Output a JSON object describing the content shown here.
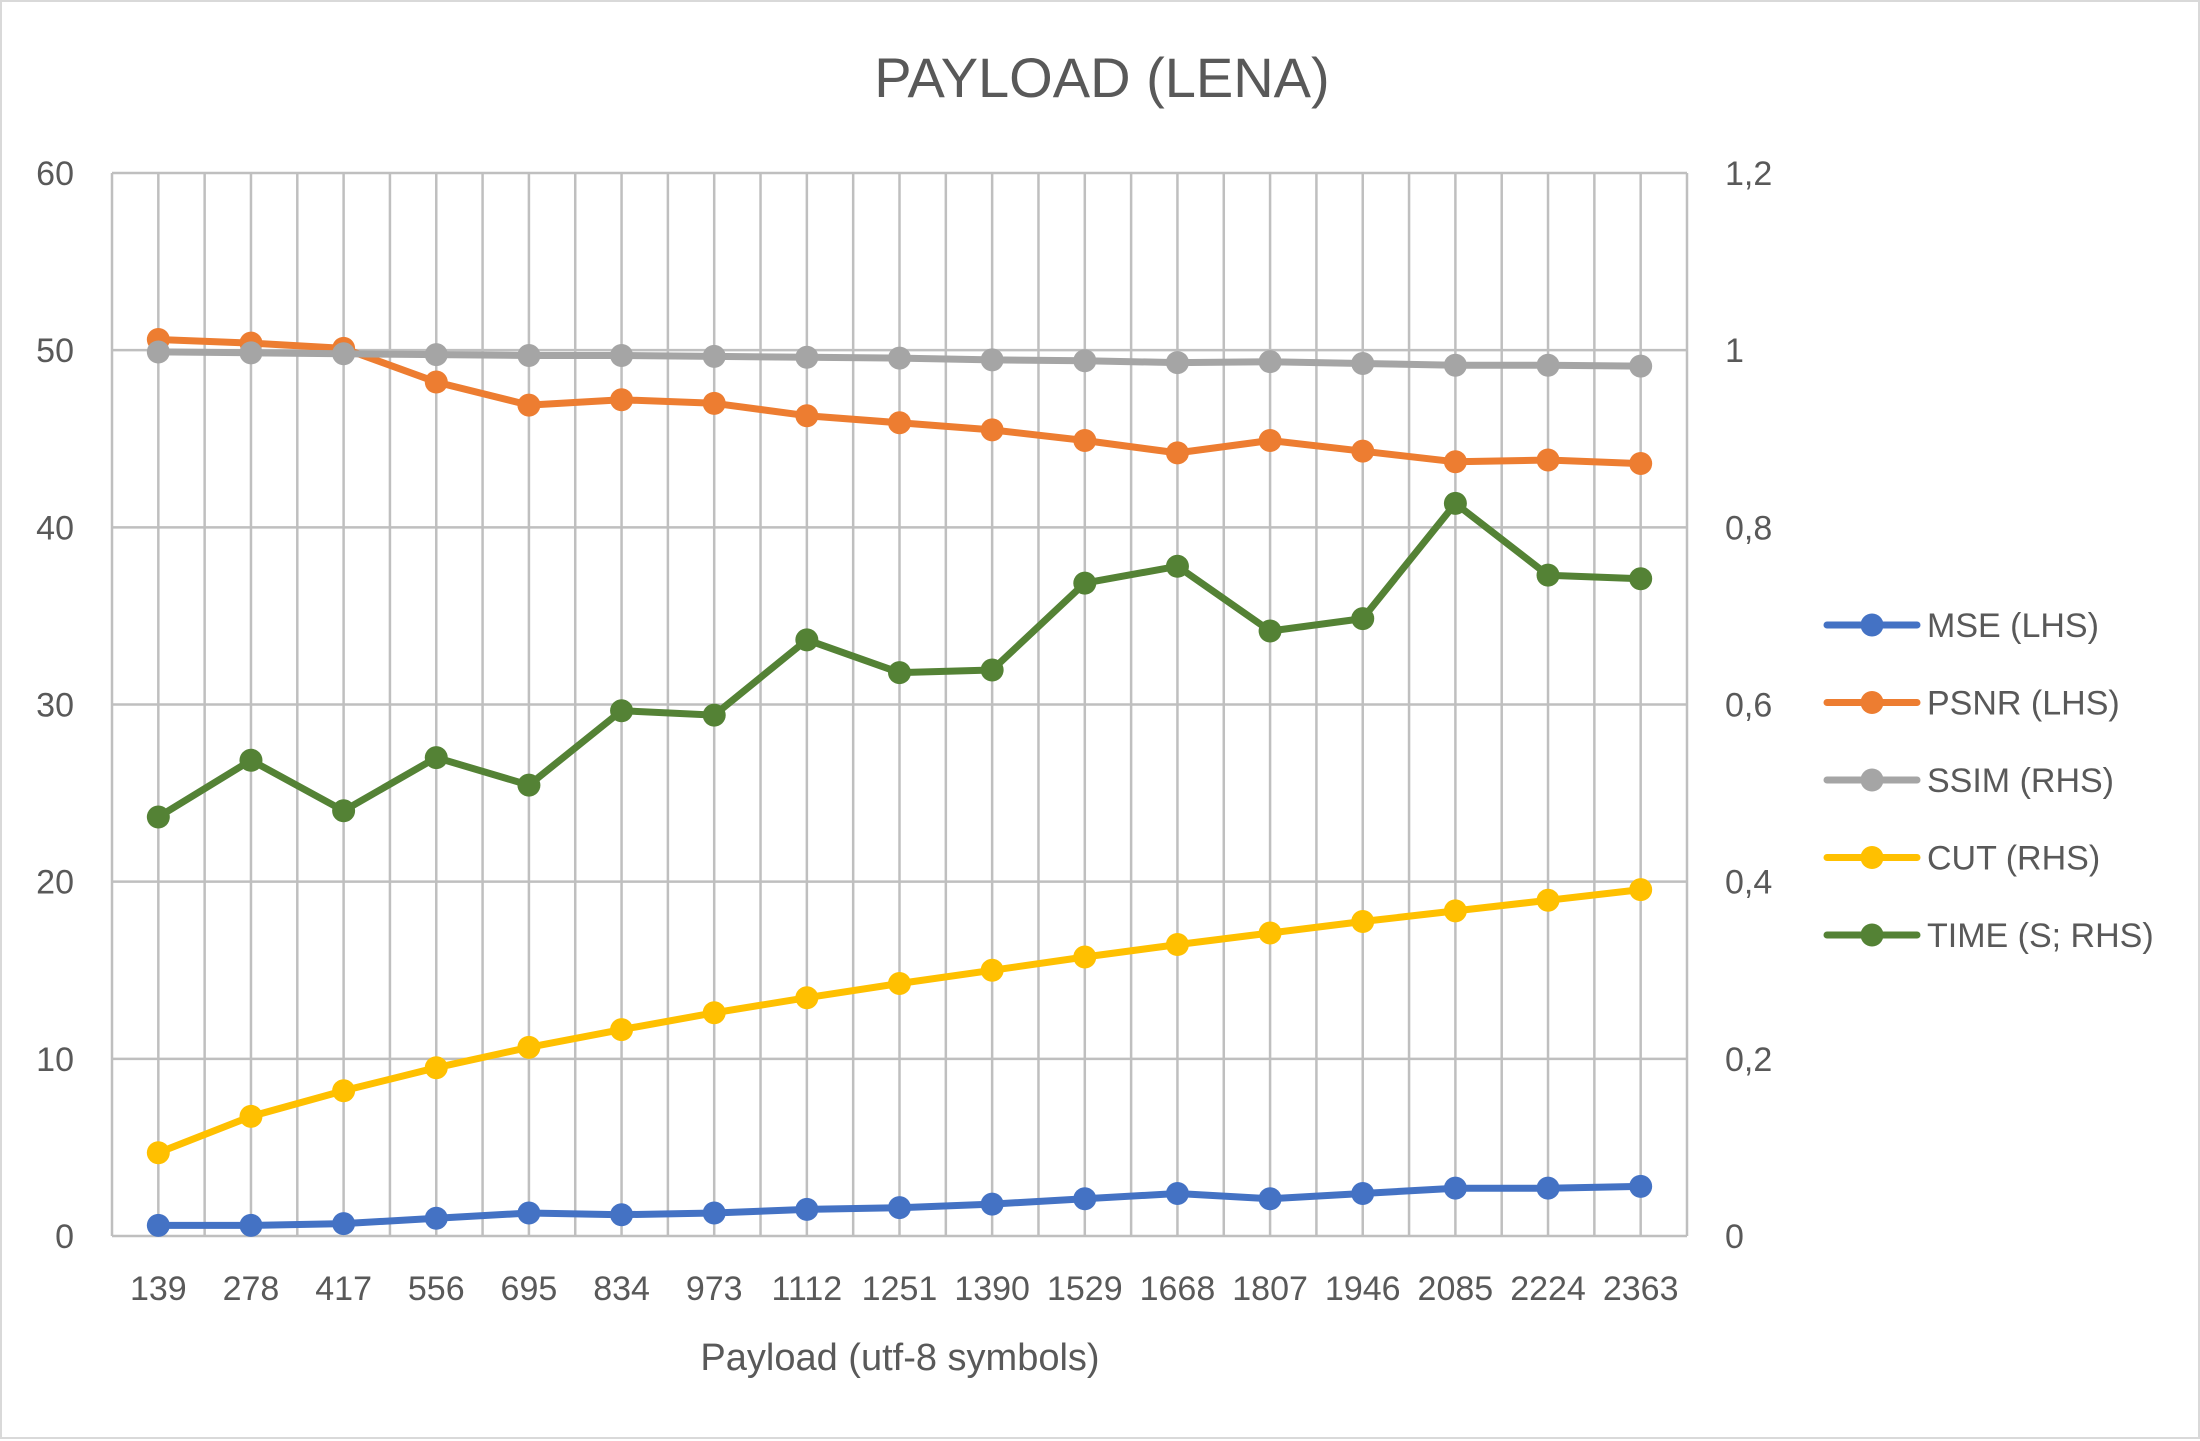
{
  "chart_data": {
    "type": "line",
    "title": "PAYLOAD (LENA)",
    "xlabel": "Payload (utf-8 symbols)",
    "ylabel": "",
    "ylabel_right": "",
    "categories": [
      "139",
      "278",
      "417",
      "556",
      "695",
      "834",
      "973",
      "1112",
      "1251",
      "1390",
      "1529",
      "1668",
      "1807",
      "1946",
      "2085",
      "2224",
      "2363"
    ],
    "ylim": [
      0,
      60
    ],
    "ylim_right": [
      0,
      1.2
    ],
    "yticks": [
      "0",
      "10",
      "20",
      "30",
      "40",
      "50",
      "60"
    ],
    "yticks_right": [
      "0",
      "0,2",
      "0,4",
      "0,6",
      "0,8",
      "1",
      "1,2"
    ],
    "grid": true,
    "legend_position": "right",
    "series": [
      {
        "name": "MSE (LHS)",
        "axis": "left",
        "color": "#4472C4",
        "values": [
          0.6,
          0.6,
          0.7,
          1.0,
          1.3,
          1.2,
          1.3,
          1.5,
          1.6,
          1.8,
          2.1,
          2.4,
          2.1,
          2.4,
          2.7,
          2.7,
          2.8
        ]
      },
      {
        "name": "PSNR (LHS)",
        "axis": "left",
        "color": "#ED7D31",
        "values": [
          50.6,
          50.4,
          50.1,
          48.2,
          46.9,
          47.2,
          47.0,
          46.3,
          45.9,
          45.5,
          44.9,
          44.2,
          44.9,
          44.3,
          43.7,
          43.8,
          43.6
        ]
      },
      {
        "name": "SSIM (RHS)",
        "axis": "right",
        "color": "#A5A5A5",
        "values": [
          0.998,
          0.997,
          0.996,
          0.995,
          0.994,
          0.994,
          0.993,
          0.992,
          0.991,
          0.989,
          0.988,
          0.986,
          0.987,
          0.985,
          0.983,
          0.983,
          0.982
        ]
      },
      {
        "name": "CUT (RHS)",
        "axis": "right",
        "color": "#FFC000",
        "values": [
          0.094,
          0.135,
          0.164,
          0.19,
          0.213,
          0.233,
          0.252,
          0.269,
          0.285,
          0.3,
          0.315,
          0.329,
          0.342,
          0.355,
          0.367,
          0.379,
          0.391
        ]
      },
      {
        "name": "TIME (S; RHS)",
        "axis": "right",
        "color": "#548235",
        "values": [
          0.473,
          0.537,
          0.48,
          0.54,
          0.509,
          0.593,
          0.588,
          0.673,
          0.636,
          0.639,
          0.737,
          0.756,
          0.683,
          0.697,
          0.827,
          0.746,
          0.742
        ]
      }
    ]
  }
}
